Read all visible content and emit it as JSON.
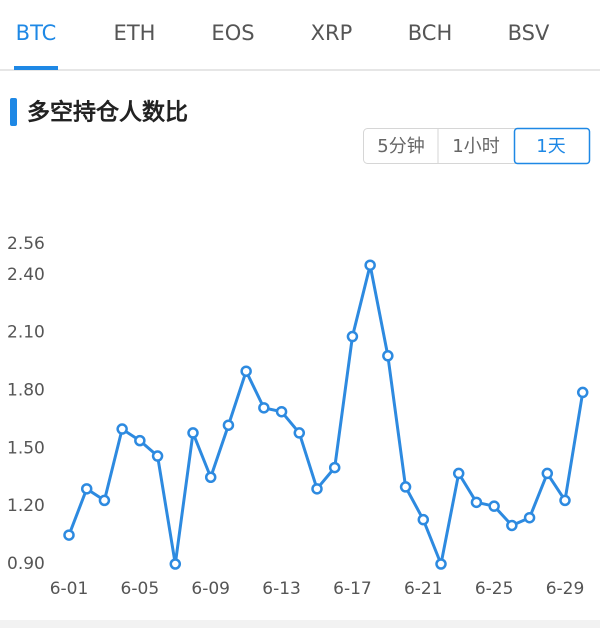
{
  "tabs": [
    "BTC",
    "ETH",
    "EOS",
    "XRP",
    "BCH",
    "BSV"
  ],
  "active_tab": 0,
  "section_title": "多空持仓人数比",
  "periods": [
    "5分钟",
    "1小时",
    "1天"
  ],
  "active_period": 2,
  "chart_data": {
    "type": "line",
    "categories": [
      "6-01",
      null,
      null,
      null,
      "6-05",
      null,
      null,
      null,
      "6-09",
      null,
      null,
      null,
      "6-13",
      null,
      null,
      null,
      "6-17",
      null,
      null,
      null,
      "6-21",
      null,
      null,
      null,
      "6-25",
      null,
      null,
      null,
      "6-29",
      null
    ],
    "values": [
      1.05,
      1.29,
      1.23,
      1.6,
      1.54,
      1.46,
      0.9,
      1.58,
      1.35,
      1.62,
      1.9,
      1.71,
      1.69,
      1.58,
      1.29,
      1.4,
      2.08,
      2.45,
      1.98,
      1.3,
      1.13,
      0.9,
      1.37,
      1.22,
      1.2,
      1.1,
      1.14,
      1.37,
      1.23,
      1.79
    ],
    "color": "#2d8ae0",
    "ylim": [
      0.9,
      2.56
    ],
    "yticks": [
      {
        "value": 0.9,
        "label": "0.90"
      },
      {
        "value": 1.2,
        "label": "1.20"
      },
      {
        "value": 1.5,
        "label": "1.50"
      },
      {
        "value": 1.8,
        "label": "1.80"
      },
      {
        "value": 2.1,
        "label": "2.10"
      },
      {
        "value": 2.4,
        "label": "2.40"
      },
      {
        "value": 2.56,
        "label": "2.56"
      }
    ],
    "grid": false
  }
}
